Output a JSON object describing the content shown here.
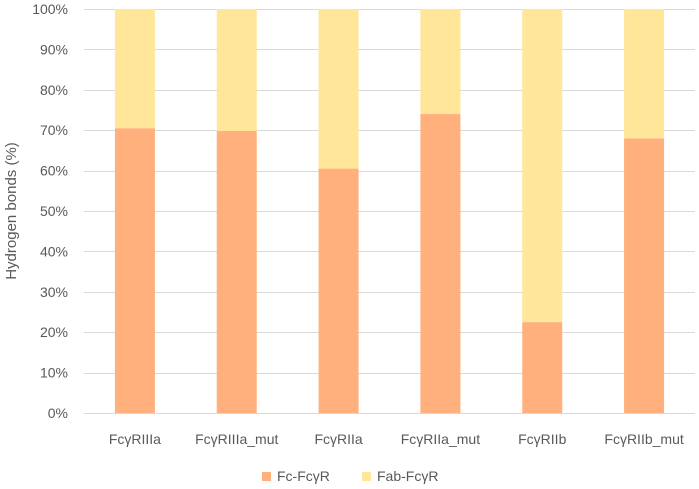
{
  "chart_data": {
    "type": "bar",
    "stacked": true,
    "categories": [
      "FcγRIIIa",
      "FcγRIIIa_mut",
      "FcγRIIa",
      "FcγRIIa_mut",
      "FcγRIIb",
      "FcγRIIb_mut"
    ],
    "series": [
      {
        "name": "Fc-FcγR",
        "values": [
          70.5,
          69.8,
          60.5,
          74.0,
          22.5,
          68.0
        ],
        "color": "#FFB07C"
      },
      {
        "name": "Fab-FcγR",
        "values": [
          29.5,
          30.2,
          39.5,
          26.0,
          77.5,
          32.0
        ],
        "color": "#FFE699"
      }
    ],
    "title": "",
    "xlabel": "",
    "ylabel": "Hydrogen bonds (%)",
    "ylim": [
      0,
      100
    ],
    "yticks": [
      "0%",
      "10%",
      "20%",
      "30%",
      "40%",
      "50%",
      "60%",
      "70%",
      "80%",
      "90%",
      "100%"
    ],
    "grid": true,
    "gridline_color": "#D9D9D9",
    "legend_position": "bottom"
  }
}
